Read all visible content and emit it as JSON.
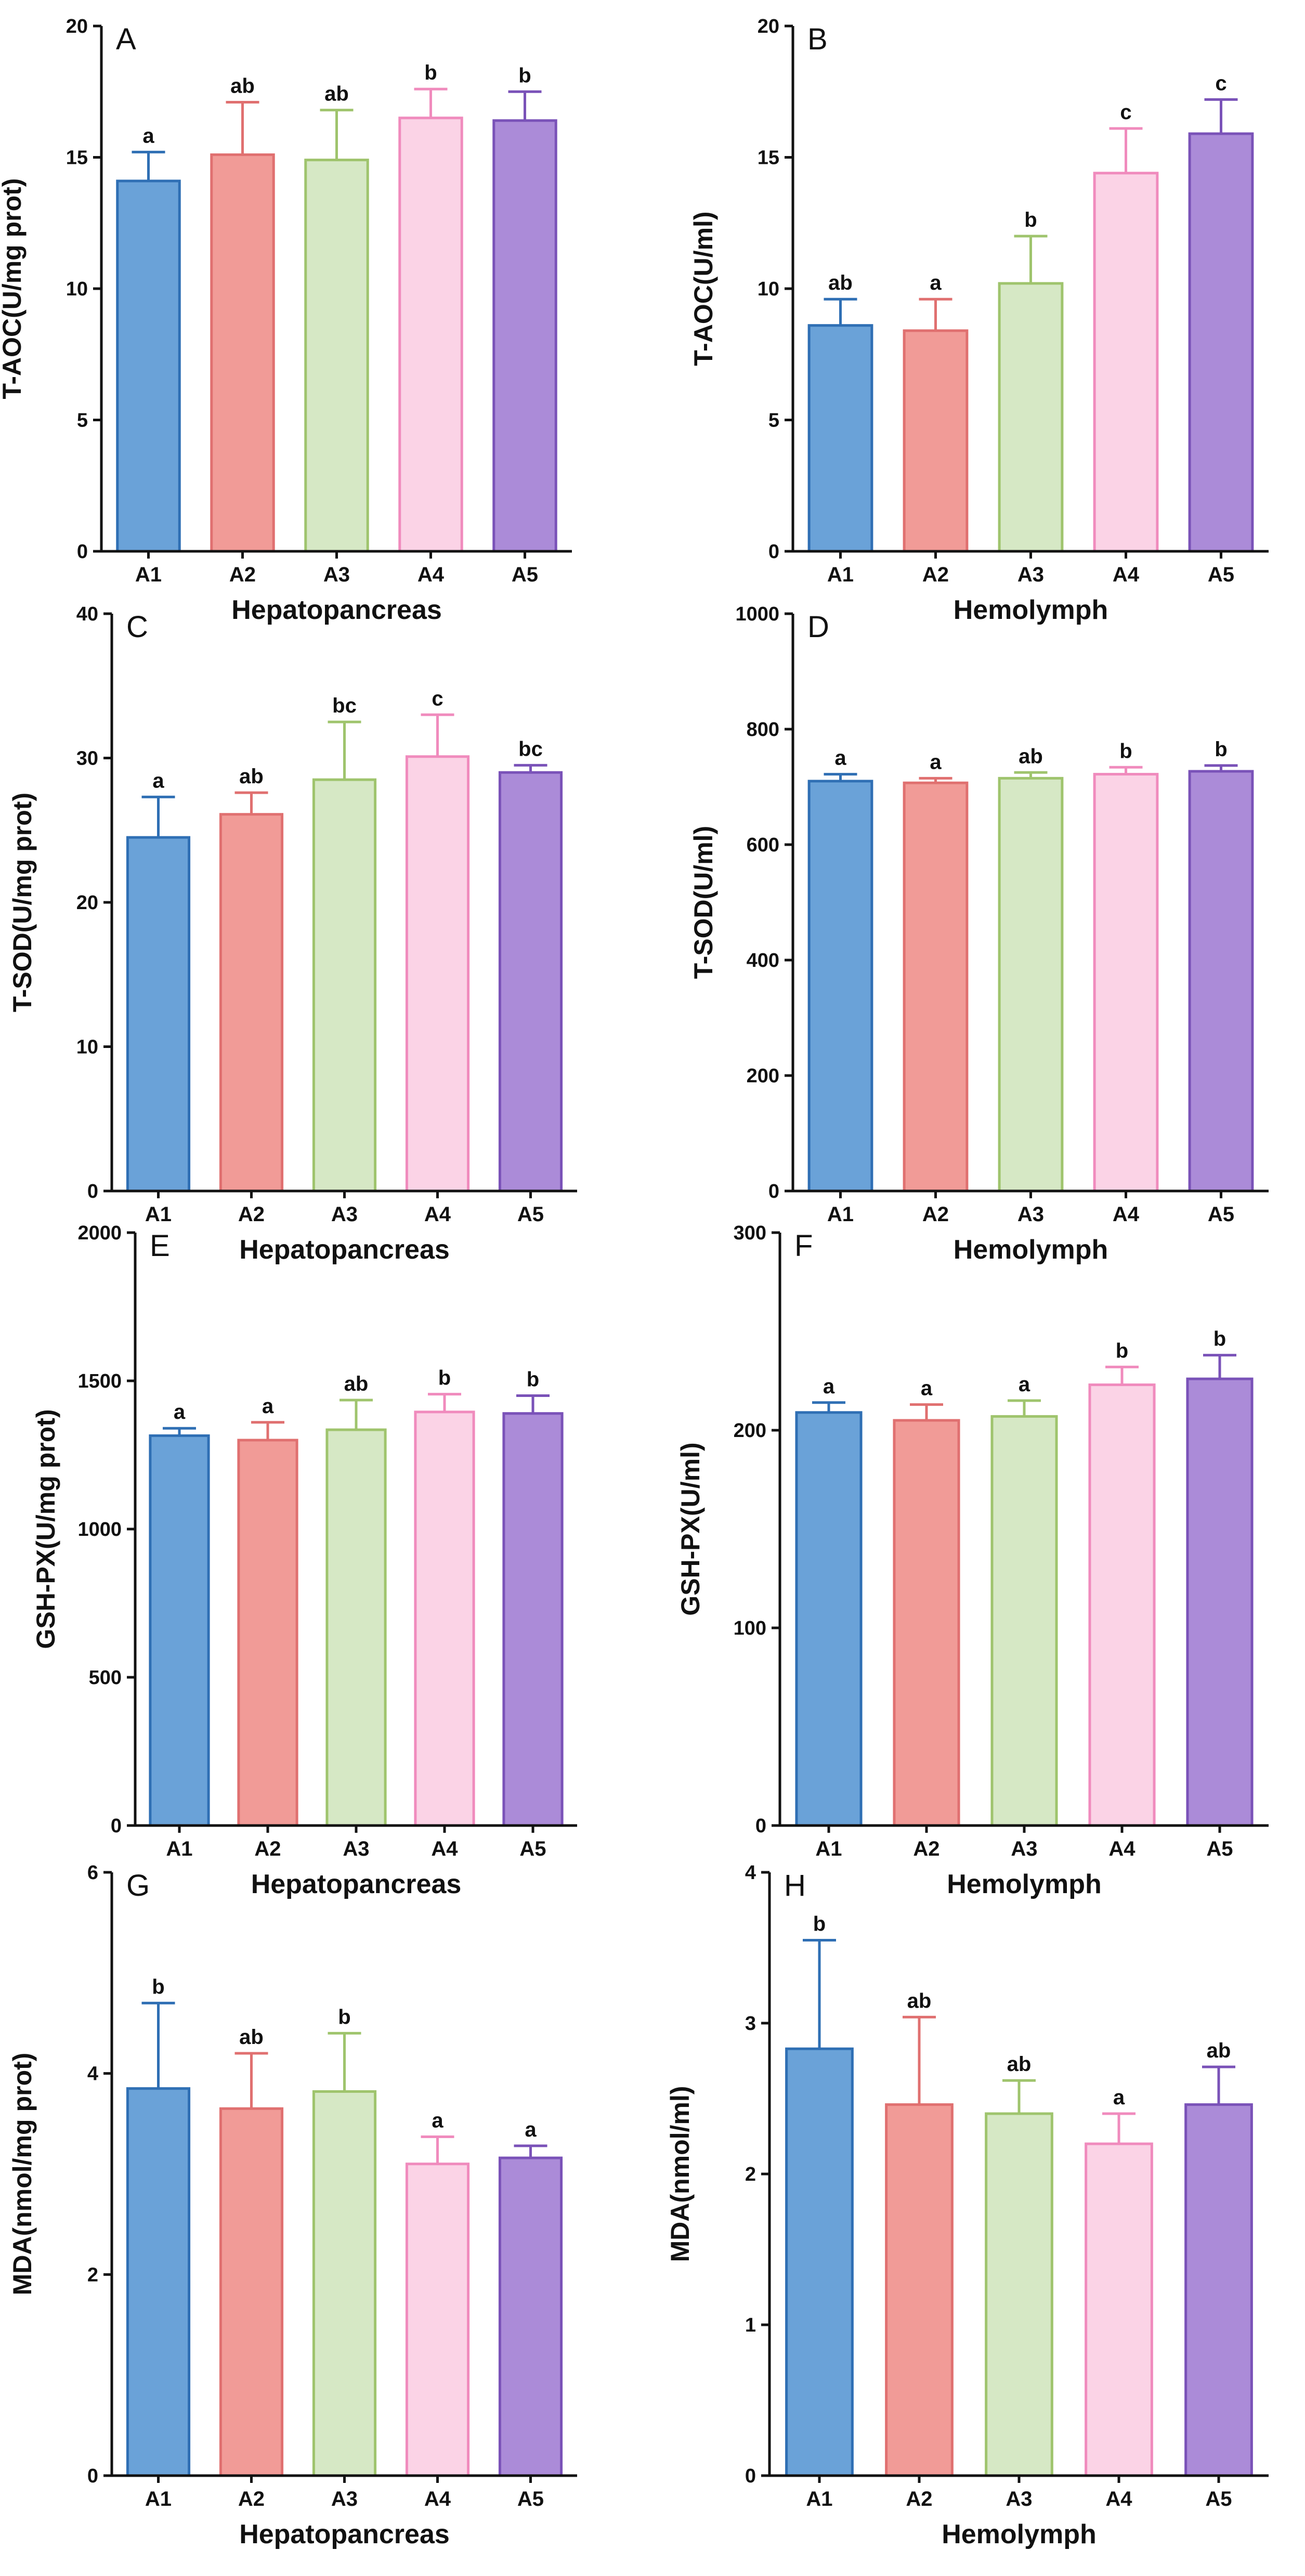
{
  "colors": {
    "fills": [
      "#6aa2d8",
      "#f19b97",
      "#d6e8c5",
      "#fbd3e6",
      "#ab8bd8"
    ],
    "strokes": [
      "#2f6fb4",
      "#e07070",
      "#9fc46d",
      "#f08bbd",
      "#7a52b8"
    ]
  },
  "chart_data": [
    {
      "id": "A",
      "type": "bar",
      "letter": "A",
      "categories": [
        "A1",
        "A2",
        "A3",
        "A4",
        "A5"
      ],
      "values": [
        14.1,
        15.1,
        14.9,
        16.5,
        16.4
      ],
      "errors": [
        1.1,
        2.0,
        1.9,
        1.1,
        1.1
      ],
      "sig": [
        "a",
        "ab",
        "ab",
        "b",
        "b"
      ],
      "ylabel": "T-AOC(U/mg prot)",
      "xlabel": "Hepatopancreas",
      "ylim": [
        0,
        20
      ],
      "yticks": [
        0,
        5,
        10,
        15,
        20
      ]
    },
    {
      "id": "B",
      "type": "bar",
      "letter": "B",
      "categories": [
        "A1",
        "A2",
        "A3",
        "A4",
        "A5"
      ],
      "values": [
        8.6,
        8.4,
        10.2,
        14.4,
        15.9
      ],
      "errors": [
        1.0,
        1.2,
        1.8,
        1.7,
        1.3
      ],
      "sig": [
        "ab",
        "a",
        "b",
        "c",
        "c"
      ],
      "ylabel": "T-AOC(U/ml)",
      "xlabel": "Hemolymph",
      "ylim": [
        0,
        20
      ],
      "yticks": [
        0,
        5,
        10,
        15,
        20
      ]
    },
    {
      "id": "C",
      "type": "bar",
      "letter": "C",
      "categories": [
        "A1",
        "A2",
        "A3",
        "A4",
        "A5"
      ],
      "values": [
        24.5,
        26.1,
        28.5,
        30.1,
        29.0
      ],
      "errors": [
        2.8,
        1.5,
        4.0,
        2.9,
        0.5
      ],
      "sig": [
        "a",
        "ab",
        "bc",
        "c",
        "bc"
      ],
      "ylabel": "T-SOD(U/mg prot)",
      "xlabel": "Hepatopancreas",
      "ylim": [
        0,
        40
      ],
      "yticks": [
        0,
        10,
        20,
        30,
        40
      ]
    },
    {
      "id": "D",
      "type": "bar",
      "letter": "D",
      "categories": [
        "A1",
        "A2",
        "A3",
        "A4",
        "A5"
      ],
      "values": [
        710,
        707,
        715,
        722,
        727
      ],
      "errors": [
        12,
        8,
        10,
        12,
        10
      ],
      "sig": [
        "a",
        "a",
        "ab",
        "b",
        "b"
      ],
      "ylabel": "T-SOD(U/ml)",
      "xlabel": "Hemolymph",
      "ylim": [
        0,
        1000
      ],
      "yticks": [
        0,
        200,
        400,
        600,
        800,
        1000
      ]
    },
    {
      "id": "E",
      "type": "bar",
      "letter": "E",
      "categories": [
        "A1",
        "A2",
        "A3",
        "A4",
        "A5"
      ],
      "values": [
        1315,
        1300,
        1335,
        1395,
        1390
      ],
      "errors": [
        25,
        60,
        100,
        60,
        60
      ],
      "sig": [
        "a",
        "a",
        "ab",
        "b",
        "b"
      ],
      "ylabel": "GSH-PX(U/mg prot)",
      "xlabel": "Hepatopancreas",
      "ylim": [
        0,
        2000
      ],
      "yticks": [
        0,
        500,
        1000,
        1500,
        2000
      ]
    },
    {
      "id": "F",
      "type": "bar",
      "letter": "F",
      "categories": [
        "A1",
        "A2",
        "A3",
        "A4",
        "A5"
      ],
      "values": [
        209,
        205,
        207,
        223,
        226
      ],
      "errors": [
        5,
        8,
        8,
        9,
        12
      ],
      "sig": [
        "a",
        "a",
        "a",
        "b",
        "b"
      ],
      "ylabel": "GSH-PX(U/ml)",
      "xlabel": "Hemolymph",
      "ylim": [
        0,
        300
      ],
      "yticks": [
        0,
        100,
        200,
        300
      ]
    },
    {
      "id": "G",
      "type": "bar",
      "letter": "G",
      "categories": [
        "A1",
        "A2",
        "A3",
        "A4",
        "A5"
      ],
      "values": [
        3.85,
        3.65,
        3.82,
        3.1,
        3.16
      ],
      "errors": [
        0.85,
        0.55,
        0.58,
        0.27,
        0.12
      ],
      "sig": [
        "b",
        "ab",
        "b",
        "a",
        "a"
      ],
      "ylabel": "MDA(nmol/mg prot)",
      "xlabel": "Hepatopancreas",
      "ylim": [
        0,
        6
      ],
      "yticks": [
        0,
        2,
        4,
        6
      ]
    },
    {
      "id": "H",
      "type": "bar",
      "letter": "H",
      "categories": [
        "A1",
        "A2",
        "A3",
        "A4",
        "A5"
      ],
      "values": [
        2.83,
        2.46,
        2.4,
        2.2,
        2.46
      ],
      "errors": [
        0.72,
        0.58,
        0.22,
        0.2,
        0.25
      ],
      "sig": [
        "b",
        "ab",
        "ab",
        "a",
        "ab"
      ],
      "ylabel": "MDA(nmol/ml)",
      "xlabel": "Hemolymph",
      "ylim": [
        0,
        4
      ],
      "yticks": [
        0,
        1,
        2,
        3,
        4
      ]
    }
  ]
}
